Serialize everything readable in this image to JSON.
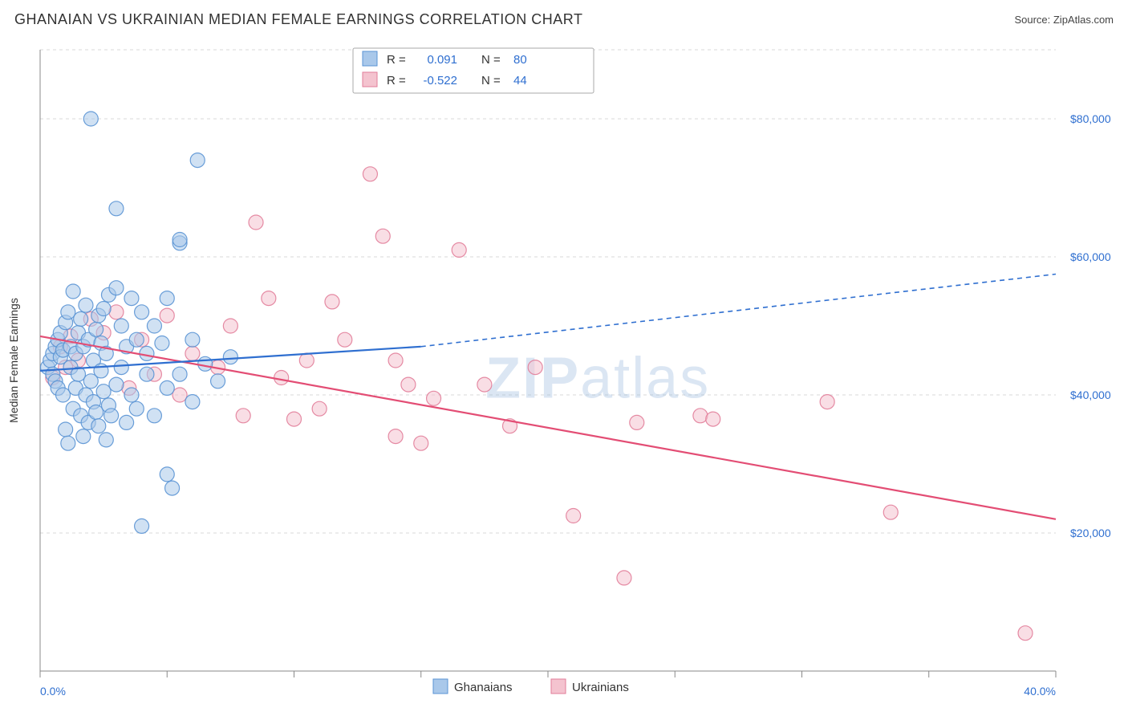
{
  "title": "GHANAIAN VS UKRAINIAN MEDIAN FEMALE EARNINGS CORRELATION CHART",
  "source": "Source: ZipAtlas.com",
  "watermark": {
    "part1": "ZIP",
    "part2": "atlas"
  },
  "y_axis_label": "Median Female Earnings",
  "x_axis": {
    "min_label": "0.0%",
    "max_label": "40.0%",
    "min": 0.0,
    "max": 40.0,
    "ticks": [
      0,
      5,
      10,
      15,
      20,
      25,
      30,
      35,
      40
    ]
  },
  "y_axis": {
    "min": 0,
    "max": 90000,
    "gridlines": [
      20000,
      40000,
      60000,
      80000
    ],
    "labels": [
      "$20,000",
      "$40,000",
      "$60,000",
      "$80,000"
    ]
  },
  "colors": {
    "blue_fill": "#a9c8ea",
    "blue_stroke": "#5a93d4",
    "pink_fill": "#f4c3cf",
    "pink_stroke": "#e27e9a",
    "blue_line": "#2f6fd0",
    "pink_line": "#e34d74",
    "grid": "#d8d8d8",
    "axis": "#888888",
    "text": "#333333",
    "blue_text": "#2f6fd0",
    "bg": "#ffffff",
    "legend_border": "#aaaaaa"
  },
  "marker_radius": 9,
  "marker_opacity": 0.55,
  "line_width": 2.2,
  "stats_legend": {
    "rows": [
      {
        "swatch": "blue",
        "r_label": "R =",
        "r": "0.091",
        "n_label": "N =",
        "n": "80"
      },
      {
        "swatch": "pink",
        "r_label": "R =",
        "r": "-0.522",
        "n_label": "N =",
        "n": "44"
      }
    ]
  },
  "bottom_legend": [
    {
      "swatch": "blue",
      "label": "Ghanaians"
    },
    {
      "swatch": "pink",
      "label": "Ukrainians"
    }
  ],
  "series": {
    "ghanaians": {
      "trend": {
        "x1": 0,
        "y1": 43500,
        "x2_solid": 15,
        "y2_solid": 47000,
        "x2_dash": 40,
        "y2_dash": 57500
      },
      "points": [
        [
          0.3,
          44000
        ],
        [
          0.4,
          45000
        ],
        [
          0.5,
          43000
        ],
        [
          0.5,
          46000
        ],
        [
          0.6,
          42000
        ],
        [
          0.6,
          47000
        ],
        [
          0.7,
          41000
        ],
        [
          0.7,
          48000
        ],
        [
          0.8,
          45500
        ],
        [
          0.8,
          49000
        ],
        [
          0.9,
          40000
        ],
        [
          0.9,
          46500
        ],
        [
          1.0,
          35000
        ],
        [
          1.0,
          50500
        ],
        [
          1.1,
          33000
        ],
        [
          1.1,
          52000
        ],
        [
          1.2,
          47000
        ],
        [
          1.2,
          44000
        ],
        [
          1.3,
          38000
        ],
        [
          1.3,
          55000
        ],
        [
          1.4,
          41000
        ],
        [
          1.4,
          46000
        ],
        [
          1.5,
          43000
        ],
        [
          1.5,
          49000
        ],
        [
          1.6,
          37000
        ],
        [
          1.6,
          51000
        ],
        [
          1.7,
          34000
        ],
        [
          1.7,
          47000
        ],
        [
          1.8,
          40000
        ],
        [
          1.8,
          53000
        ],
        [
          1.9,
          36000
        ],
        [
          1.9,
          48000
        ],
        [
          2.0,
          80000
        ],
        [
          2.0,
          42000
        ],
        [
          2.1,
          39000
        ],
        [
          2.1,
          45000
        ],
        [
          2.2,
          37500
        ],
        [
          2.2,
          49500
        ],
        [
          2.3,
          35500
        ],
        [
          2.3,
          51500
        ],
        [
          2.4,
          43500
        ],
        [
          2.4,
          47500
        ],
        [
          2.5,
          40500
        ],
        [
          2.5,
          52500
        ],
        [
          2.6,
          33500
        ],
        [
          2.6,
          46000
        ],
        [
          2.7,
          38500
        ],
        [
          2.7,
          54500
        ],
        [
          2.8,
          37000
        ],
        [
          3.0,
          67000
        ],
        [
          3.0,
          41500
        ],
        [
          3.0,
          55500
        ],
        [
          3.2,
          44000
        ],
        [
          3.2,
          50000
        ],
        [
          3.4,
          36000
        ],
        [
          3.4,
          47000
        ],
        [
          3.6,
          40000
        ],
        [
          3.6,
          54000
        ],
        [
          3.8,
          38000
        ],
        [
          3.8,
          48000
        ],
        [
          4.0,
          21000
        ],
        [
          4.0,
          52000
        ],
        [
          4.2,
          43000
        ],
        [
          4.2,
          46000
        ],
        [
          4.5,
          37000
        ],
        [
          4.5,
          50000
        ],
        [
          4.8,
          47500
        ],
        [
          5.0,
          28500
        ],
        [
          5.0,
          41000
        ],
        [
          5.0,
          54000
        ],
        [
          5.2,
          26500
        ],
        [
          5.5,
          62000
        ],
        [
          5.5,
          43000
        ],
        [
          5.5,
          62500
        ],
        [
          6.0,
          39000
        ],
        [
          6.0,
          48000
        ],
        [
          6.2,
          74000
        ],
        [
          6.5,
          44500
        ],
        [
          7.0,
          42000
        ],
        [
          7.5,
          45500
        ]
      ]
    },
    "ukrainians": {
      "trend": {
        "x1": 0,
        "y1": 48500,
        "x2": 40,
        "y2": 22000
      },
      "points": [
        [
          0.5,
          42500
        ],
        [
          0.8,
          47000
        ],
        [
          1.0,
          44000
        ],
        [
          1.2,
          48500
        ],
        [
          1.5,
          45000
        ],
        [
          2.0,
          51000
        ],
        [
          2.5,
          49000
        ],
        [
          3.0,
          52000
        ],
        [
          3.5,
          41000
        ],
        [
          4.0,
          48000
        ],
        [
          4.5,
          43000
        ],
        [
          5.0,
          51500
        ],
        [
          5.5,
          40000
        ],
        [
          6.0,
          46000
        ],
        [
          7.0,
          44000
        ],
        [
          7.5,
          50000
        ],
        [
          8.0,
          37000
        ],
        [
          8.5,
          65000
        ],
        [
          9.0,
          54000
        ],
        [
          9.5,
          42500
        ],
        [
          10.0,
          36500
        ],
        [
          10.5,
          45000
        ],
        [
          11.0,
          38000
        ],
        [
          11.5,
          53500
        ],
        [
          12.0,
          48000
        ],
        [
          13.0,
          72000
        ],
        [
          13.5,
          63000
        ],
        [
          14.0,
          34000
        ],
        [
          14.5,
          41500
        ],
        [
          15.0,
          33000
        ],
        [
          15.5,
          39500
        ],
        [
          16.5,
          61000
        ],
        [
          17.5,
          41500
        ],
        [
          18.5,
          35500
        ],
        [
          19.5,
          44000
        ],
        [
          21.0,
          22500
        ],
        [
          23.5,
          36000
        ],
        [
          23.0,
          13500
        ],
        [
          26.0,
          37000
        ],
        [
          26.5,
          36500
        ],
        [
          31.0,
          39000
        ],
        [
          33.5,
          23000
        ],
        [
          38.8,
          5500
        ],
        [
          14.0,
          45000
        ]
      ]
    }
  }
}
